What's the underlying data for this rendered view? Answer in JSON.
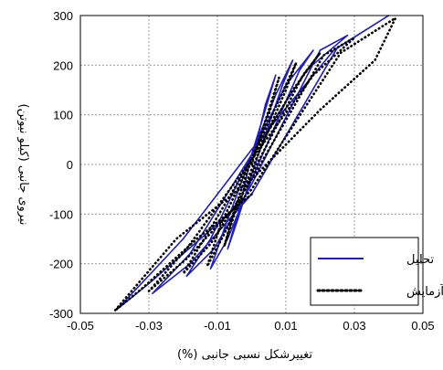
{
  "chart_data": {
    "type": "line",
    "xlabel": "تغییرشکل نسبی جانبی (%)",
    "ylabel": "نیروی جانبی (کیلو نیوتن)",
    "xlim": [
      -0.05,
      0.05
    ],
    "ylim": [
      -300,
      300
    ],
    "x_ticks": [
      "-0.05",
      "-0.03",
      "-0.01",
      "0.01",
      "0.03",
      "0.05"
    ],
    "y_ticks": [
      "300",
      "200",
      "100",
      "0",
      "-100",
      "-200",
      "-300"
    ],
    "grid": true,
    "legend_position": "bottom-right",
    "series": [
      {
        "name": "تحلیل",
        "style": "solid",
        "color": "#1f1fb4",
        "x": [
          0.0,
          0.004,
          0.007,
          0.004,
          0.0,
          -0.004,
          -0.007,
          -0.004,
          0.0,
          0.009,
          0.012,
          0.007,
          0.0,
          -0.008,
          -0.012,
          -0.007,
          0.0,
          0.014,
          0.018,
          0.01,
          0.0,
          -0.012,
          -0.019,
          -0.011,
          0.0,
          0.02,
          0.028,
          0.016,
          0.0,
          -0.018,
          -0.029,
          -0.018,
          0.0,
          0.025,
          0.04,
          0.024,
          0.0,
          -0.02,
          -0.039,
          -0.03,
          -0.015,
          0.0
        ],
        "y": [
          0,
          120,
          180,
          110,
          20,
          -100,
          -170,
          -110,
          -20,
          160,
          210,
          140,
          20,
          -130,
          -210,
          -150,
          -30,
          190,
          230,
          160,
          20,
          -150,
          -225,
          -170,
          -40,
          230,
          260,
          190,
          20,
          -180,
          -260,
          -200,
          -60,
          235,
          300,
          230,
          30,
          -150,
          -290,
          -240,
          -150,
          -60
        ]
      },
      {
        "name": "آزمایش",
        "style": "dotted",
        "color": "#000000",
        "x": [
          0.0,
          0.005,
          0.008,
          0.005,
          0.0,
          -0.005,
          -0.008,
          -0.005,
          0.0,
          0.01,
          0.013,
          0.008,
          0.0,
          -0.009,
          -0.013,
          -0.008,
          0.0,
          0.015,
          0.02,
          0.012,
          0.0,
          -0.013,
          -0.02,
          -0.012,
          0.0,
          0.021,
          0.03,
          0.018,
          0.0,
          -0.019,
          -0.03,
          -0.019,
          0.0,
          0.026,
          0.042,
          0.036,
          0.02,
          0.0,
          -0.022,
          -0.04,
          -0.032,
          -0.016,
          0.0
        ],
        "y": [
          0,
          110,
          175,
          100,
          10,
          -90,
          -165,
          -100,
          -10,
          150,
          205,
          130,
          10,
          -120,
          -205,
          -140,
          -20,
          180,
          225,
          150,
          10,
          -140,
          -220,
          -160,
          -30,
          220,
          255,
          180,
          10,
          -170,
          -255,
          -190,
          -50,
          225,
          295,
          210,
          110,
          -30,
          -150,
          -295,
          -250,
          -150,
          -60
        ]
      }
    ]
  }
}
